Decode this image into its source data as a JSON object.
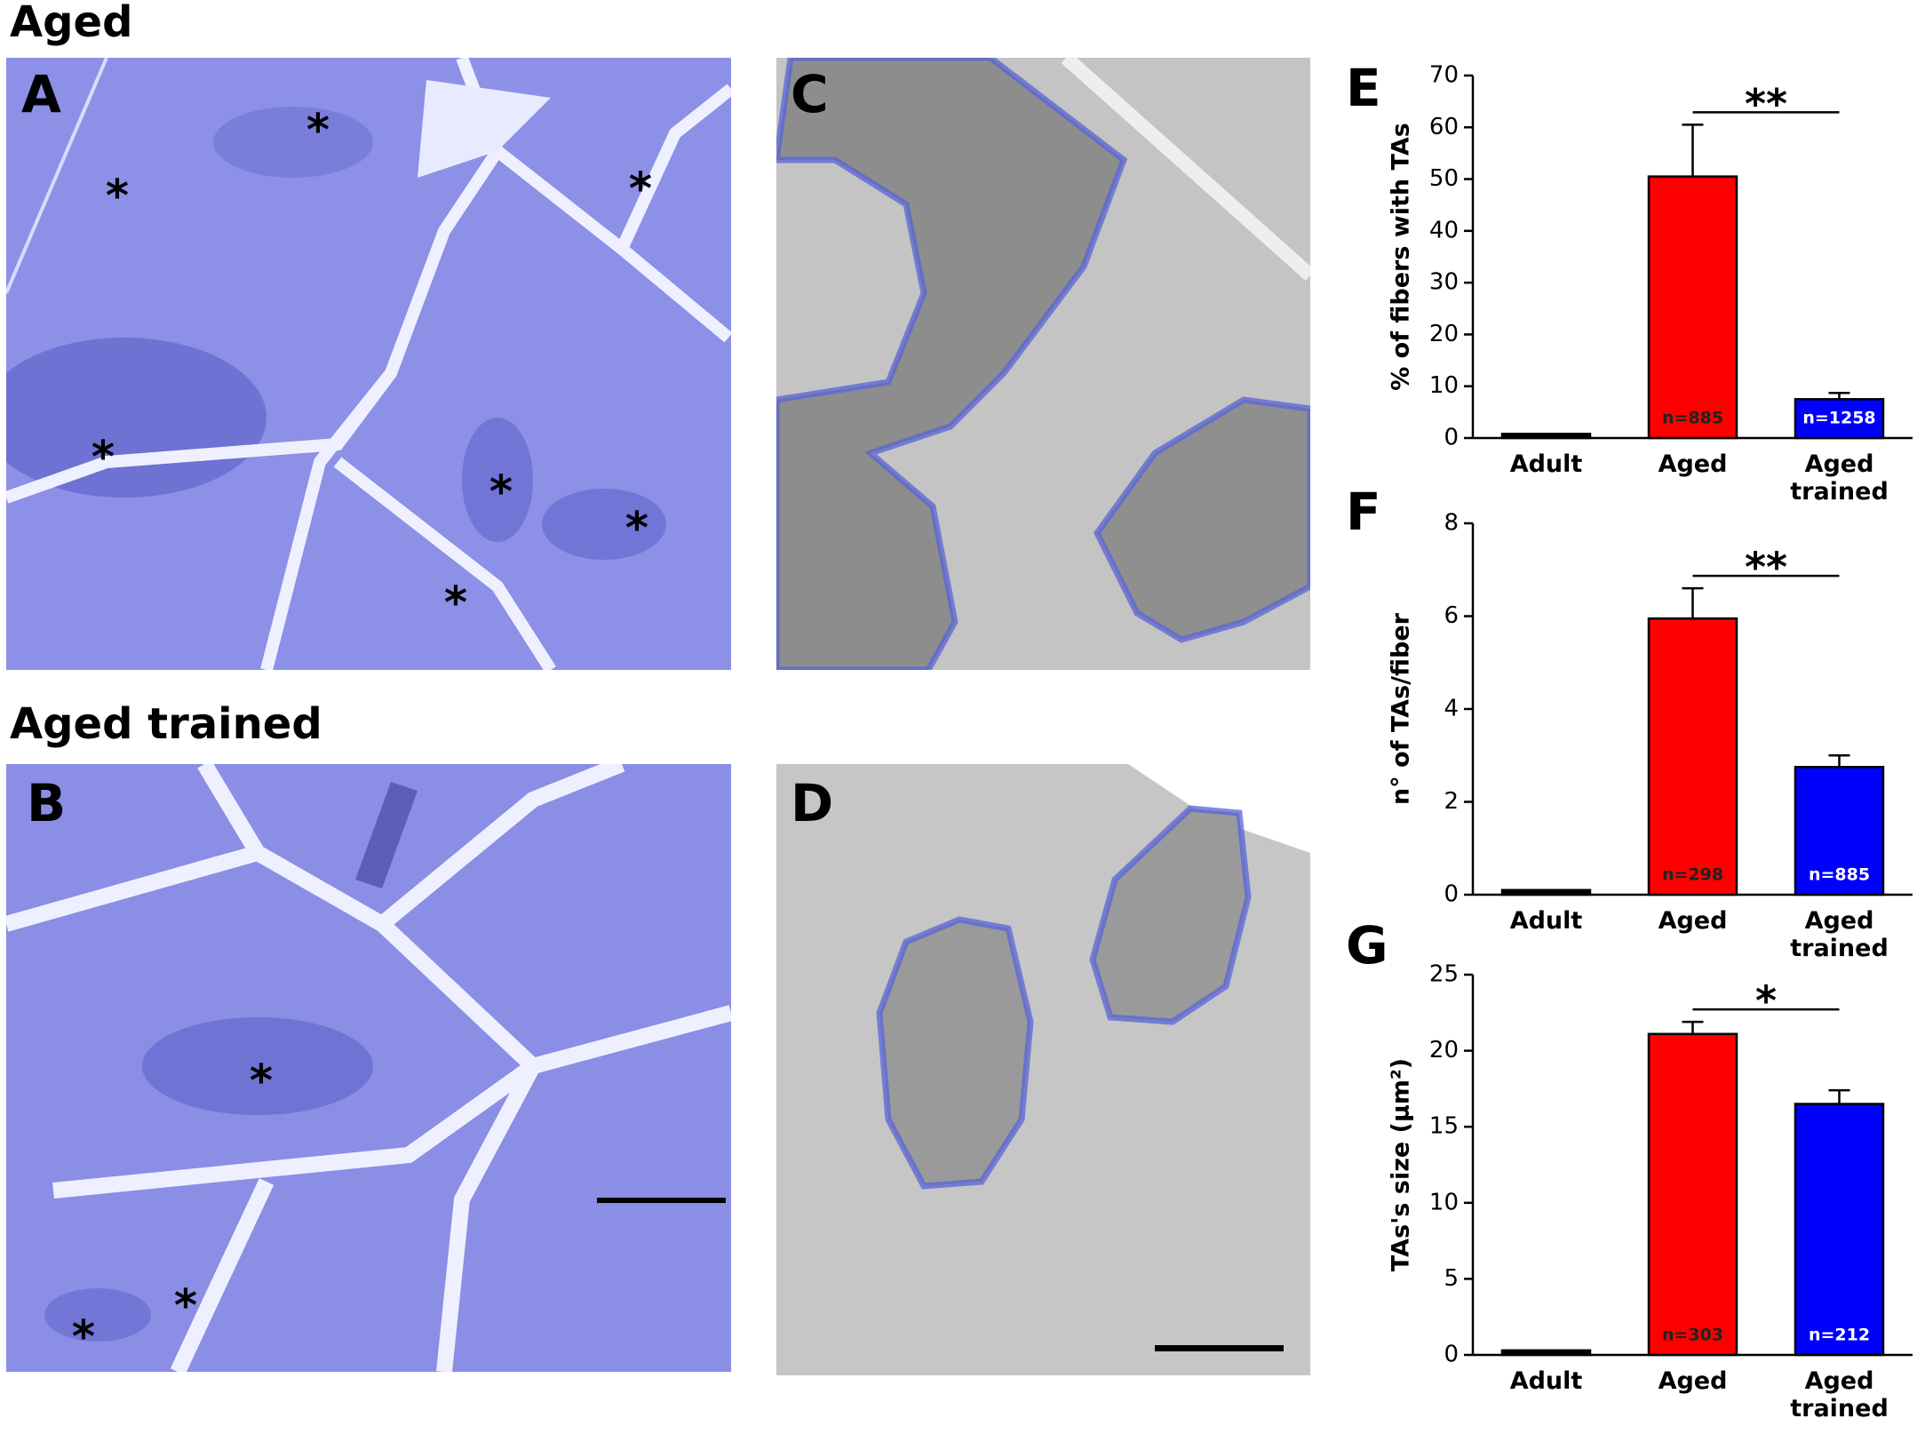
{
  "figure": {
    "headings": [
      "Aged",
      "Aged trained"
    ],
    "panels": [
      "A",
      "B",
      "C",
      "D",
      "E",
      "F",
      "G"
    ],
    "micrograph_marker": "*"
  },
  "chart_data": [
    {
      "type": "bar",
      "ylabel": "% of fibers with TAs",
      "categories": [
        "Adult",
        "Aged",
        "Aged trained"
      ],
      "values": [
        0.8,
        50.5,
        7.5
      ],
      "errors": [
        null,
        10,
        1.2
      ],
      "colors": [
        "#000000",
        "#ff0000",
        "#0000ff"
      ],
      "n_labels": [
        null,
        "n=885",
        "n=1258"
      ],
      "significance": "**",
      "ylim": [
        0,
        70
      ],
      "yticks": [
        0,
        10,
        20,
        30,
        40,
        50,
        60,
        70
      ]
    },
    {
      "type": "bar",
      "ylabel": "n° of TAs/fiber",
      "categories": [
        "Adult",
        "Aged",
        "Aged trained"
      ],
      "values": [
        0.1,
        5.95,
        2.75
      ],
      "errors": [
        null,
        0.65,
        0.25
      ],
      "colors": [
        "#000000",
        "#ff0000",
        "#0000ff"
      ],
      "n_labels": [
        null,
        "n=298",
        "n=885"
      ],
      "significance": "**",
      "ylim": [
        0,
        8
      ],
      "yticks": [
        0,
        2,
        4,
        6,
        8
      ]
    },
    {
      "type": "bar",
      "ylabel": "TAs's size (μm²)",
      "categories": [
        "Adult",
        "Aged",
        "Aged trained"
      ],
      "values": [
        0.3,
        21.1,
        16.5
      ],
      "errors": [
        null,
        0.8,
        0.9
      ],
      "colors": [
        "#000000",
        "#ff0000",
        "#0000ff"
      ],
      "n_labels": [
        null,
        "n=303",
        "n=212"
      ],
      "significance": "*",
      "ylim": [
        0,
        25
      ],
      "yticks": [
        0,
        5,
        10,
        15,
        20,
        25
      ]
    }
  ]
}
